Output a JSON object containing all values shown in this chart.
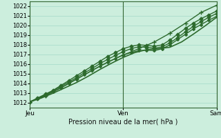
{
  "title": "",
  "xlabel": "Pression niveau de la mer( hPa )",
  "ylabel": "",
  "bg_color": "#cceedd",
  "plot_bg_color": "#cceedd",
  "grid_color": "#aaddcc",
  "line_color": "#2d6a2d",
  "spine_color": "#336633",
  "ylim": [
    1011.5,
    1022.5
  ],
  "yticks": [
    1012,
    1013,
    1014,
    1015,
    1016,
    1017,
    1018,
    1019,
    1020,
    1021,
    1022
  ],
  "xtick_labels": [
    "Jeu",
    "Ven",
    "Sam"
  ],
  "xtick_positions": [
    0,
    48,
    96
  ],
  "x_total": 96,
  "lines": [
    {
      "x": [
        0,
        4,
        8,
        12,
        16,
        20,
        24,
        28,
        32,
        36,
        40,
        44,
        48,
        52,
        56,
        60,
        64,
        68,
        72,
        76,
        80,
        84,
        88,
        92,
        96
      ],
      "y": [
        1012.1,
        1012.5,
        1012.9,
        1013.3,
        1013.8,
        1014.3,
        1014.8,
        1015.3,
        1015.8,
        1016.3,
        1016.8,
        1017.2,
        1017.6,
        1017.85,
        1018.0,
        1017.95,
        1017.85,
        1018.0,
        1018.5,
        1019.1,
        1019.7,
        1020.25,
        1020.7,
        1021.1,
        1021.5
      ],
      "marker": "D",
      "markersize": 2.5,
      "linewidth": 1.0
    },
    {
      "x": [
        0,
        4,
        8,
        12,
        16,
        20,
        24,
        28,
        32,
        36,
        40,
        44,
        48,
        52,
        56,
        60,
        64,
        68,
        72,
        76,
        80,
        84,
        88,
        92,
        96
      ],
      "y": [
        1012.1,
        1012.45,
        1012.85,
        1013.25,
        1013.7,
        1014.15,
        1014.6,
        1015.1,
        1015.55,
        1016.05,
        1016.5,
        1016.9,
        1017.3,
        1017.6,
        1017.8,
        1017.75,
        1017.65,
        1017.8,
        1018.2,
        1018.75,
        1019.35,
        1019.9,
        1020.4,
        1020.85,
        1021.25
      ],
      "marker": "D",
      "markersize": 2.5,
      "linewidth": 1.0
    },
    {
      "x": [
        0,
        4,
        8,
        12,
        16,
        20,
        24,
        28,
        32,
        36,
        40,
        44,
        48,
        52,
        56,
        60,
        64,
        68,
        72,
        76,
        80,
        84,
        88,
        92,
        96
      ],
      "y": [
        1012.1,
        1012.4,
        1012.75,
        1013.15,
        1013.55,
        1014.0,
        1014.45,
        1014.9,
        1015.35,
        1015.8,
        1016.2,
        1016.6,
        1016.95,
        1017.2,
        1017.4,
        1017.45,
        1017.4,
        1017.6,
        1018.0,
        1018.55,
        1019.1,
        1019.65,
        1020.1,
        1020.55,
        1020.95
      ],
      "marker": "D",
      "markersize": 2.0,
      "linewidth": 1.0
    },
    {
      "x": [
        0,
        6,
        12,
        18,
        24,
        30,
        36,
        42,
        48,
        54,
        60,
        66,
        72,
        78,
        84,
        90,
        96
      ],
      "y": [
        1012.1,
        1012.5,
        1013.0,
        1013.55,
        1014.1,
        1014.75,
        1015.45,
        1016.1,
        1016.7,
        1017.2,
        1017.5,
        1017.6,
        1017.75,
        1018.3,
        1019.1,
        1019.95,
        1020.85
      ],
      "marker": "None",
      "markersize": 0,
      "linewidth": 1.2
    },
    {
      "x": [
        0,
        8,
        16,
        24,
        32,
        40,
        48,
        56,
        64,
        72,
        80,
        88,
        96
      ],
      "y": [
        1012.1,
        1012.75,
        1013.55,
        1014.45,
        1015.35,
        1016.2,
        1016.95,
        1017.6,
        1018.3,
        1019.2,
        1020.25,
        1021.35,
        1022.1
      ],
      "marker": "+",
      "markersize": 4,
      "linewidth": 1.0
    }
  ]
}
